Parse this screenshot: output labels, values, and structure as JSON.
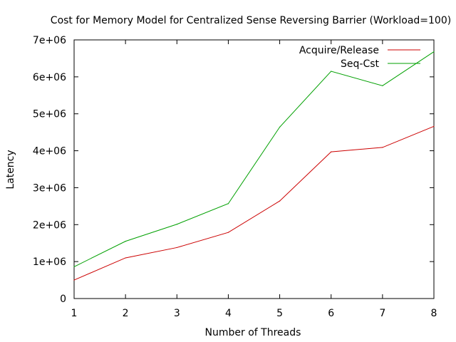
{
  "chart_data": {
    "type": "line",
    "title": "Cost for Memory Model for Centralized Sense Reversing Barrier (Workload=100)",
    "xlabel": "Number of Threads",
    "ylabel": "Latency",
    "xlim": [
      1,
      8
    ],
    "ylim": [
      0,
      7000000
    ],
    "x_ticks": [
      1,
      2,
      3,
      4,
      5,
      6,
      7,
      8
    ],
    "x_tick_labels": [
      "1",
      "2",
      "3",
      "4",
      "5",
      "6",
      "7",
      "8"
    ],
    "y_ticks": [
      0,
      1000000,
      2000000,
      3000000,
      4000000,
      5000000,
      6000000,
      7000000
    ],
    "y_tick_labels": [
      "0",
      "1e+06",
      "2e+06",
      "3e+06",
      "4e+06",
      "5e+06",
      "6e+06",
      "7e+06"
    ],
    "grid": false,
    "legend_position": "top-right",
    "x": [
      1,
      2,
      3,
      4,
      5,
      6,
      7,
      8
    ],
    "series": [
      {
        "name": "Acquire/Release",
        "color": "#cc0000",
        "values": [
          500000,
          1100000,
          1380000,
          1790000,
          2640000,
          3970000,
          4090000,
          4660000
        ]
      },
      {
        "name": "Seq-Cst",
        "color": "#00a000",
        "values": [
          860000,
          1550000,
          2010000,
          2570000,
          4640000,
          6150000,
          5760000,
          6680000
        ]
      }
    ]
  }
}
